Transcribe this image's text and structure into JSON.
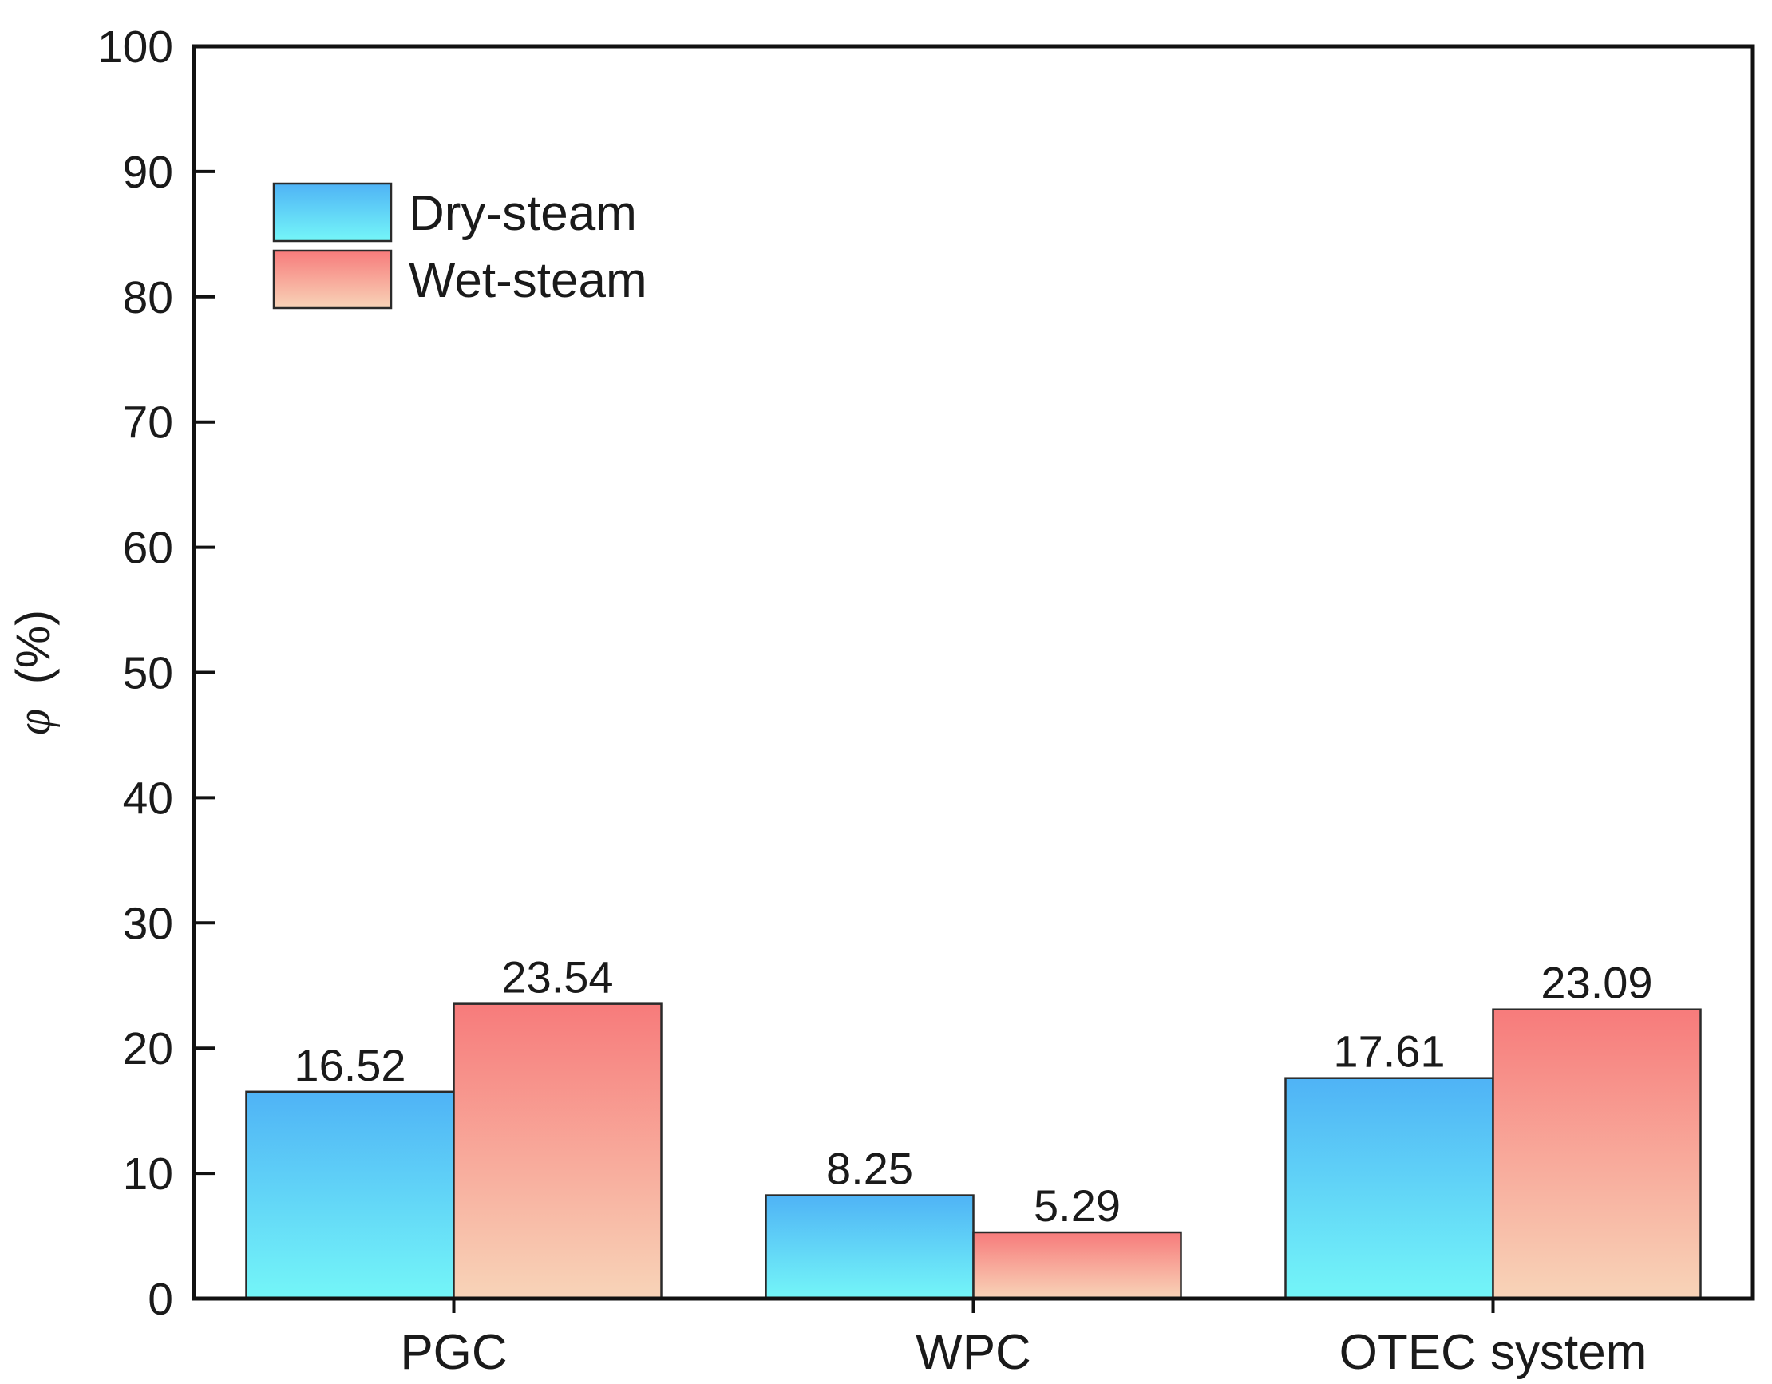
{
  "chart_data": {
    "type": "bar",
    "title": "",
    "xlabel": "",
    "ylabel": {
      "symbol": "φ",
      "unit": "(%)"
    },
    "ylim": [
      0,
      100
    ],
    "yticks": [
      0,
      10,
      20,
      30,
      40,
      50,
      60,
      70,
      80,
      90,
      100
    ],
    "grid": false,
    "legend_position": "top-left",
    "categories": [
      "PGC",
      "WPC",
      "OTEC system"
    ],
    "series": [
      {
        "name": "Dry-steam",
        "values": [
          16.52,
          8.25,
          17.61
        ],
        "labels": [
          "16.52",
          "8.25",
          "17.61"
        ],
        "gradient_top": "#4fb3f6",
        "gradient_bottom": "#74f6f8"
      },
      {
        "name": "Wet-steam",
        "values": [
          23.54,
          5.29,
          23.09
        ],
        "labels": [
          "23.54",
          "5.29",
          "23.09"
        ],
        "gradient_top": "#f77b7b",
        "gradient_bottom": "#f8d4b8"
      }
    ]
  },
  "colors": {
    "axis": "#111111",
    "bar_stroke": "#2a2a2a"
  }
}
